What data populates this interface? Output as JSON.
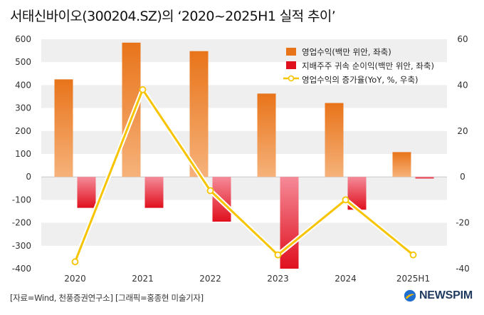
{
  "title": "서태신바이오(300204.SZ)의 ‘2020~2025H1 실적 추이’",
  "source": "[자료=Wind, 천풍증권연구소] [그래픽=홍종현 미술기자]",
  "logo_text": "NEWSPIM",
  "colors": {
    "revenue_top": "#e8741a",
    "revenue_bottom": "#f6b27a",
    "profit_top": "#f58a98",
    "profit_bottom": "#e0101e",
    "growth_line": "#f7c400",
    "band": "#efefef",
    "logo": "#1f3a5f"
  },
  "chart_data": {
    "type": "bar+line",
    "categories": [
      "2020",
      "2021",
      "2022",
      "2023",
      "2024",
      "2025H1"
    ],
    "series": [
      {
        "name": "영업수익(백만 위안, 좌축)",
        "type": "bar",
        "axis": "left",
        "values": [
          425,
          585,
          548,
          363,
          322,
          108
        ]
      },
      {
        "name": "지배주주 귀속 순이익(백만 위안, 좌축)",
        "type": "bar",
        "axis": "left",
        "values": [
          -135,
          -135,
          -195,
          -400,
          -143,
          -7
        ]
      },
      {
        "name": "영업수익의 증가율(YoY, %, 우축)",
        "type": "line",
        "axis": "right",
        "values": [
          -37,
          38,
          -6,
          -34,
          -10,
          -34
        ]
      }
    ],
    "y_left": {
      "min": -400,
      "max": 600,
      "ticks": [
        "600",
        "500",
        "400",
        "300",
        "200",
        "100",
        "0",
        "-100",
        "-200",
        "-300",
        "-400"
      ]
    },
    "y_right": {
      "min": -40,
      "max": 60,
      "ticks": [
        "60",
        "40",
        "20",
        "0",
        "-20",
        "-40"
      ]
    },
    "legend_position": "top-right",
    "grid": "alternating horizontal bands"
  }
}
